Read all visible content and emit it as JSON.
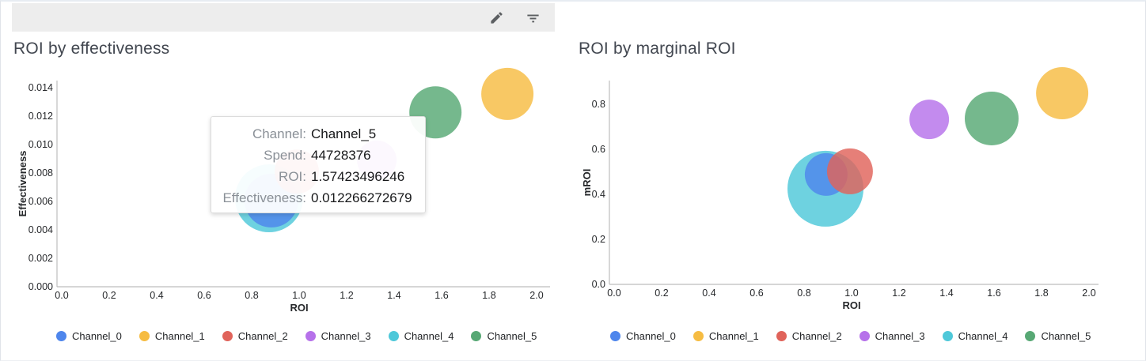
{
  "toolbar": {
    "edit_icon": "edit-pencil",
    "filter_icon": "filter-list",
    "icon_color": "#5c5f62",
    "bg_color": "#ededed"
  },
  "legend": {
    "items": [
      {
        "label": "Channel_0",
        "color": "#4e86ec"
      },
      {
        "label": "Channel_1",
        "color": "#f6bc42"
      },
      {
        "label": "Channel_2",
        "color": "#e0635a"
      },
      {
        "label": "Channel_3",
        "color": "#b671ea"
      },
      {
        "label": "Channel_4",
        "color": "#4ec8d9"
      },
      {
        "label": "Channel_5",
        "color": "#57a874"
      }
    ]
  },
  "tooltip": {
    "rows": [
      {
        "label": "Channel:",
        "value": "Channel_5"
      },
      {
        "label": "Spend:",
        "value": "44728376"
      },
      {
        "label": "ROI:",
        "value": "1.57423496246"
      },
      {
        "label": "Effectiveness:",
        "value": "0.012266272679"
      }
    ]
  },
  "chart_data": [
    {
      "type": "scatter",
      "title": "ROI by effectiveness",
      "xlabel": "ROI",
      "ylabel": "Effectiveness",
      "xlim": [
        0.0,
        2.0
      ],
      "ylim": [
        0.0,
        0.014
      ],
      "xticks": [
        "0.0",
        "0.2",
        "0.4",
        "0.6",
        "0.8",
        "1.0",
        "1.2",
        "1.4",
        "1.6",
        "1.8",
        "2.0"
      ],
      "yticks": [
        "0.000",
        "0.002",
        "0.004",
        "0.006",
        "0.008",
        "0.010",
        "0.012",
        "0.014"
      ],
      "grid": false,
      "legend_position": "bottom",
      "series": [
        {
          "name": "Channel_4",
          "x": 0.873,
          "y": 0.00622,
          "radius": 43
        },
        {
          "name": "Channel_0",
          "x": 0.883,
          "y": 0.00606,
          "radius": 34
        },
        {
          "name": "Channel_2",
          "x": 0.99,
          "y": 0.0081,
          "radius": 28
        },
        {
          "name": "Channel_3",
          "x": 1.327,
          "y": 0.0089,
          "radius": 25
        },
        {
          "name": "Channel_5",
          "x": 1.574,
          "y": 0.012266272679,
          "radius": 33
        },
        {
          "name": "Channel_1",
          "x": 1.877,
          "y": 0.01356,
          "radius": 33
        }
      ]
    },
    {
      "type": "scatter",
      "title": "ROI by marginal ROI",
      "xlabel": "ROI",
      "ylabel": "mROI",
      "xlim": [
        0.0,
        2.0
      ],
      "ylim": [
        0.0,
        0.8
      ],
      "xticks": [
        "0.0",
        "0.2",
        "0.4",
        "0.6",
        "0.8",
        "1.0",
        "1.2",
        "1.4",
        "1.6",
        "1.8",
        "2.0"
      ],
      "yticks": [
        "0.0",
        "0.2",
        "0.4",
        "0.6",
        "0.8"
      ],
      "grid": false,
      "legend_position": "bottom",
      "series": [
        {
          "name": "Channel_4",
          "x": 0.89,
          "y": 0.425,
          "radius": 48
        },
        {
          "name": "Channel_0",
          "x": 0.893,
          "y": 0.488,
          "radius": 27
        },
        {
          "name": "Channel_2",
          "x": 0.993,
          "y": 0.502,
          "radius": 29
        },
        {
          "name": "Channel_3",
          "x": 1.327,
          "y": 0.733,
          "radius": 25
        },
        {
          "name": "Channel_5",
          "x": 1.59,
          "y": 0.737,
          "radius": 34
        },
        {
          "name": "Channel_1",
          "x": 1.887,
          "y": 0.849,
          "radius": 33
        }
      ]
    }
  ]
}
